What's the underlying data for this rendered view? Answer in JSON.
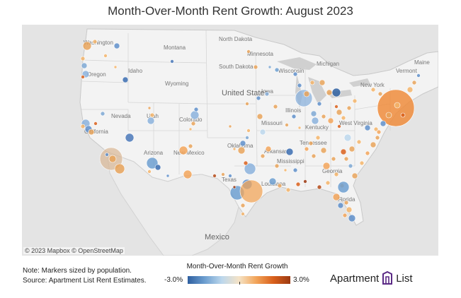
{
  "title": "Month-Over-Month Rent Growth: August 2023",
  "attribution": "© 2023 Mapbox © OpenStreetMap",
  "map_labels": {
    "countries": [
      "United States",
      "Mexico"
    ],
    "states": [
      "Washington",
      "Oregon",
      "Idaho",
      "Montana",
      "North Dakota",
      "Minnesota",
      "South Dakota",
      "Wisconsin",
      "Wyoming",
      "Michigan",
      "Iowa",
      "Nevada",
      "Utah",
      "Colorado",
      "Illinois",
      "Missouri",
      "California",
      "Arizona",
      "New Mexico",
      "Oklahoma",
      "Arkansas",
      "Tennessee",
      "Mississippi",
      "Georgia",
      "Texas",
      "Louisiana",
      "Florida",
      "West Virginia",
      "Kentucky",
      "New York",
      "Maine",
      "Vermont"
    ]
  },
  "legend": {
    "title": "Month-Over-Month Rent Growth",
    "min_label": "-3.0%",
    "max_label": "3.0%",
    "colors": [
      "#2e5fa0",
      "#6d9fd0",
      "#bcd7ec",
      "#f5e3c6",
      "#f2a55a",
      "#d9601c",
      "#9c3a12"
    ]
  },
  "notes": {
    "line1": "Note: Markers sized by population.",
    "line2": "Source: Apartment List Rent Estimates."
  },
  "brand": {
    "name_left": "Apartment",
    "name_right": "List"
  }
}
